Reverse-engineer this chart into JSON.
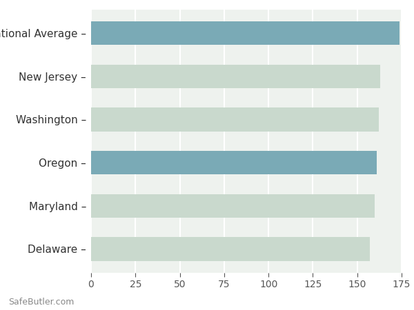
{
  "categories": [
    "Delaware",
    "Maryland",
    "Oregon",
    "Washington",
    "New Jersey",
    "National Average"
  ],
  "values": [
    157,
    160,
    161,
    162,
    163,
    174
  ],
  "bar_colors": [
    "#c9d9cd",
    "#c9d9cd",
    "#7aaab6",
    "#c9d9cd",
    "#c9d9cd",
    "#7aaab6"
  ],
  "xlim": [
    0,
    175
  ],
  "xticks": [
    0,
    25,
    50,
    75,
    100,
    125,
    150,
    175
  ],
  "background_color": "#ffffff",
  "plot_bg_color": "#eef2ee",
  "grid_color": "#ffffff",
  "bar_height": 0.55,
  "watermark": "SafeButler.com",
  "label_fontsize": 11,
  "tick_fontsize": 10,
  "tick_color": "#555555",
  "label_color": "#333333"
}
